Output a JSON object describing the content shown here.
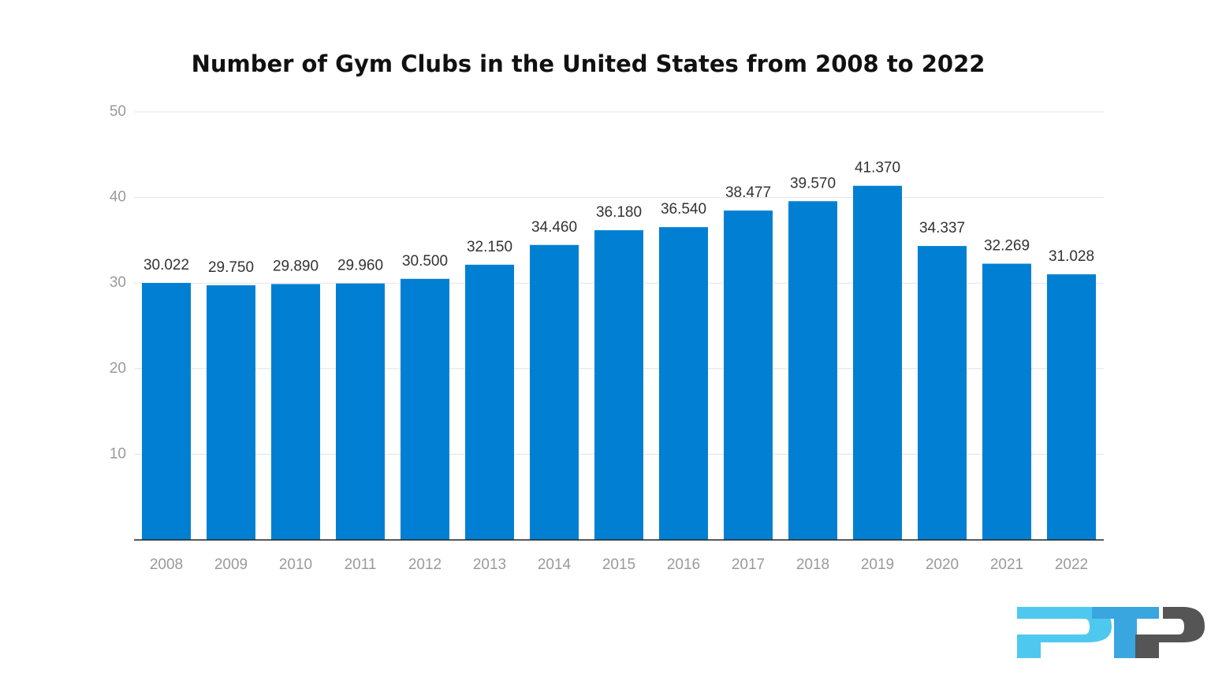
{
  "chart_data": {
    "type": "bar",
    "title": "Number of Gym Clubs in the United States from 2008 to 2022",
    "categories": [
      "2008",
      "2009",
      "2010",
      "2011",
      "2012",
      "2013",
      "2014",
      "2015",
      "2016",
      "2017",
      "2018",
      "2019",
      "2020",
      "2021",
      "2022"
    ],
    "values": [
      30.022,
      29.75,
      29.89,
      29.96,
      30.5,
      32.15,
      34.46,
      36.18,
      36.54,
      38.477,
      39.57,
      41.37,
      34.337,
      32.269,
      31.028
    ],
    "value_labels": [
      "30.022",
      "29.750",
      "29.890",
      "29.960",
      "30.500",
      "32.150",
      "34.460",
      "36.180",
      "36.540",
      "38.477",
      "39.570",
      "41.370",
      "34.337",
      "32.269",
      "31.028"
    ],
    "color": "#0180d3",
    "ylim": [
      0,
      50
    ],
    "yticks": [
      10,
      20,
      30,
      40,
      50
    ],
    "grid": true
  }
}
